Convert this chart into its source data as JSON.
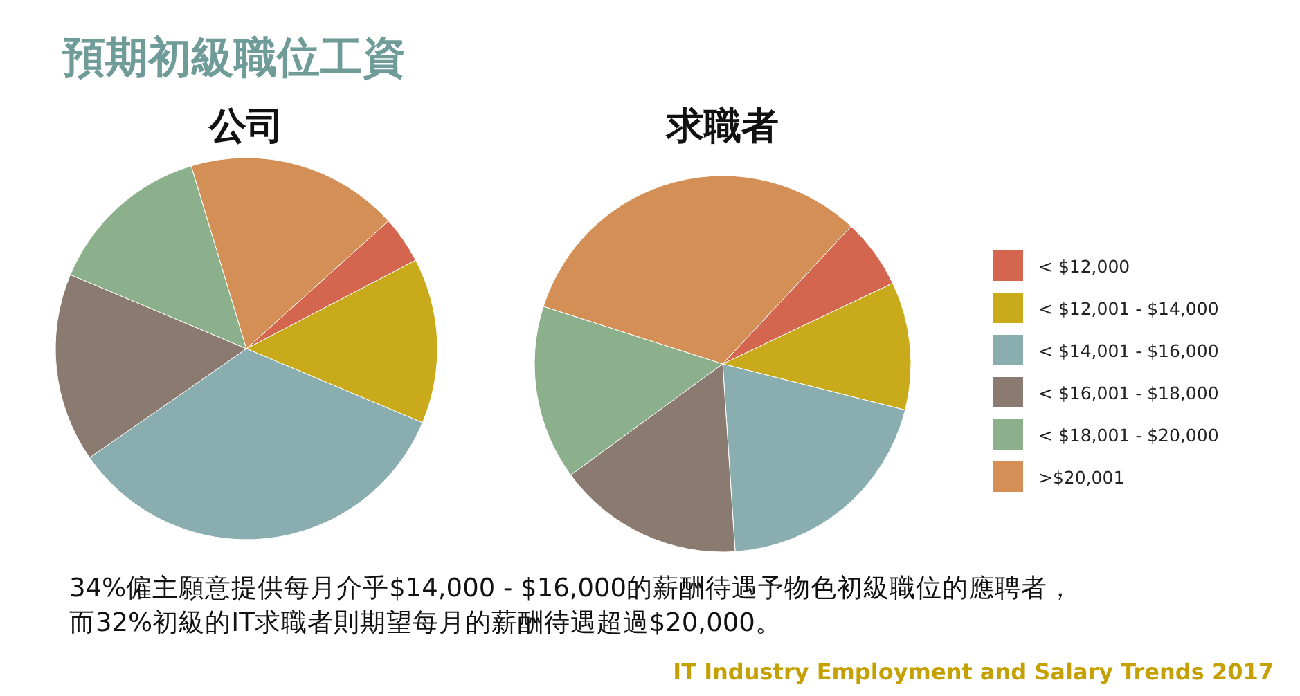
{
  "chart_data": [
    {
      "type": "pie",
      "title": "預期初級職位工資",
      "subtitle": "公司",
      "categories": [
        null,
        null,
        null,
        null,
        null,
        null
      ],
      "values": [
        4,
        14,
        34,
        16,
        14,
        18
      ],
      "colors": [
        "#d4654f",
        "#c9aa1a",
        "#8aadb0",
        "#8a7a70",
        "#8cb08c",
        "#d38f55"
      ],
      "legend": false
    },
    {
      "type": "pie",
      "title": "求職者",
      "categories": [
        "< $12,000",
        "< $12,001 - $14,000",
        "< $14,001 - $16,000",
        "< $16,001 - $18,000",
        "< $18,001 - $20,000",
        ">$20,001"
      ],
      "values": [
        6,
        11,
        20,
        16,
        15,
        32
      ],
      "colors": [
        "#d4654f",
        "#c9aa1a",
        "#8aadb0",
        "#8a7a70",
        "#8cb08c",
        "#d38f55"
      ],
      "legend": "right",
      "annotations": [
        "34%僱主願意提供每月介乎$14,000 - $16,000的薪酬待遇予物色初級職位的應聘者，",
        "而32%初級的IT求職者則期望每月的薪酬待遇超過$20,000。",
        "IT Industry Employment and Salary Trends 2017"
      ]
    }
  ]
}
